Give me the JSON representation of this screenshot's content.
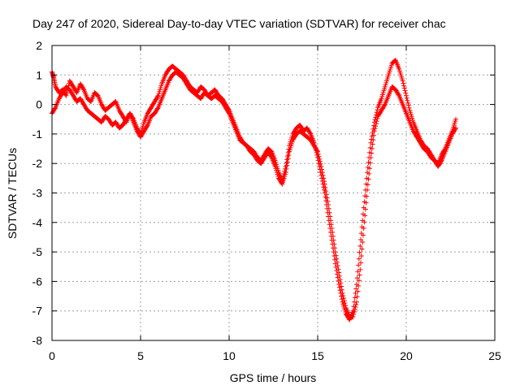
{
  "chart_data": {
    "type": "scatter",
    "title": "Day 247 of 2020, Sidereal Day-to-day VTEC variation (SDTVAR) for receiver chac",
    "xlabel": "GPS time / hours",
    "ylabel": "SDTVAR / TECUs",
    "xlim": [
      0,
      25
    ],
    "ylim": [
      -8,
      2
    ],
    "xticks": [
      "0",
      "5",
      "10",
      "15",
      "20",
      "25"
    ],
    "yticks": [
      "2",
      "1",
      "0",
      "-1",
      "-2",
      "-3",
      "-4",
      "-5",
      "-6",
      "-7",
      "-8"
    ],
    "grid": true,
    "marker": "+",
    "color": "#ff0000",
    "series": [
      {
        "x": [
          0.0,
          0.1,
          0.2,
          0.4,
          0.6,
          0.8,
          1.0,
          1.2,
          1.4,
          1.6,
          1.8,
          2.0,
          2.2,
          2.4,
          2.6,
          2.8,
          3.0,
          3.2,
          3.4,
          3.6,
          3.8,
          4.0,
          4.2,
          4.4,
          4.6,
          4.8,
          5.0,
          5.2,
          5.4,
          5.6,
          5.8,
          6.0,
          6.2,
          6.4,
          6.6,
          6.8,
          7.0,
          7.2,
          7.4,
          7.6,
          7.8,
          8.0,
          8.2,
          8.4,
          8.6,
          8.8,
          9.0,
          9.2,
          9.4,
          9.6,
          9.8,
          10.0,
          10.2,
          10.4,
          10.6,
          10.8,
          11.0,
          11.2,
          11.4,
          11.6,
          11.8,
          12.0,
          12.2,
          12.4,
          12.6,
          12.8,
          13.0,
          13.2,
          13.4,
          13.6,
          13.8,
          14.0,
          14.2,
          14.4,
          14.6,
          14.8,
          15.0,
          15.2,
          15.4,
          15.6,
          15.8,
          16.0,
          16.2,
          16.4,
          16.6,
          16.8,
          17.0,
          17.2,
          17.4,
          17.6,
          17.8,
          18.0,
          18.2,
          18.4,
          18.6,
          18.8,
          19.0,
          19.2,
          19.4,
          19.6,
          19.8,
          20.0,
          20.2,
          20.4,
          20.6,
          20.8,
          21.0,
          21.2,
          21.4,
          21.6,
          21.8,
          22.0,
          22.2,
          22.4,
          22.6,
          22.8
        ],
        "y": [
          1.1,
          0.9,
          0.6,
          0.4,
          0.5,
          0.3,
          0.8,
          0.6,
          0.4,
          0.7,
          0.5,
          0.2,
          0.1,
          0.4,
          0.3,
          0.0,
          -0.2,
          -0.1,
          0.0,
          0.1,
          -0.2,
          -0.4,
          -0.6,
          -0.3,
          -0.5,
          -0.8,
          -1.0,
          -0.6,
          -0.3,
          -0.1,
          0.1,
          0.3,
          0.7,
          1.0,
          1.2,
          1.3,
          1.2,
          1.1,
          1.0,
          0.8,
          0.6,
          0.5,
          0.4,
          0.6,
          0.5,
          0.3,
          0.4,
          0.5,
          0.3,
          0.2,
          0.0,
          -0.2,
          -0.5,
          -0.8,
          -1.1,
          -1.3,
          -1.4,
          -1.5,
          -1.6,
          -1.8,
          -1.9,
          -1.7,
          -1.5,
          -1.6,
          -1.9,
          -2.3,
          -2.6,
          -2.1,
          -1.4,
          -1.0,
          -0.8,
          -0.7,
          -0.9,
          -0.8,
          -1.0,
          -1.3,
          -1.8,
          -2.4,
          -3.0,
          -3.8,
          -4.6,
          -5.4,
          -6.1,
          -6.7,
          -7.1,
          -7.3,
          -7.0,
          -6.1,
          -4.8,
          -3.5,
          -2.3,
          -1.3,
          -0.6,
          -0.1,
          0.2,
          0.6,
          1.0,
          1.4,
          1.5,
          1.2,
          0.8,
          0.3,
          -0.2,
          -0.6,
          -0.9,
          -1.2,
          -1.4,
          -1.5,
          -1.7,
          -1.9,
          -2.0,
          -1.7,
          -1.5,
          -1.2,
          -0.9,
          -0.5
        ]
      },
      {
        "x": [
          0.0,
          0.2,
          0.4,
          0.6,
          0.8,
          1.0,
          1.2,
          1.4,
          1.6,
          1.8,
          2.0,
          2.2,
          2.4,
          2.6,
          2.8,
          3.0,
          3.2,
          3.4,
          3.6,
          3.8,
          4.0,
          4.2,
          4.4,
          4.6,
          4.8,
          5.0,
          5.2,
          5.4,
          5.6,
          5.8,
          6.0,
          6.2,
          6.4,
          6.6,
          6.8,
          7.0,
          7.2,
          7.4,
          7.6,
          7.8,
          8.0,
          8.2,
          8.4,
          8.6,
          8.8,
          9.0,
          9.2,
          9.4,
          9.6,
          9.8,
          10.0,
          10.2,
          10.4,
          10.6,
          10.8,
          11.0,
          11.2,
          11.4,
          11.6,
          11.8,
          12.0,
          12.2,
          12.4,
          12.6,
          12.8,
          13.0,
          13.2,
          13.4,
          13.6,
          13.8,
          14.0,
          14.2,
          14.4,
          14.6,
          14.8,
          15.0,
          15.2,
          15.4,
          15.6,
          15.8,
          16.0,
          16.2,
          16.4,
          16.6,
          16.8,
          17.0,
          17.2,
          17.4,
          17.6,
          17.8,
          18.0,
          18.2,
          18.4,
          18.6,
          18.8,
          19.0,
          19.2,
          19.4,
          19.6,
          19.8,
          20.0,
          20.2,
          20.4,
          20.6,
          20.8,
          21.0,
          21.2,
          21.4,
          21.6,
          21.8,
          22.0,
          22.2,
          22.4,
          22.6,
          22.8
        ],
        "y": [
          -0.3,
          -0.1,
          0.2,
          0.4,
          0.6,
          0.5,
          0.3,
          0.1,
          0.2,
          0.0,
          -0.2,
          -0.3,
          -0.4,
          -0.5,
          -0.6,
          -0.4,
          -0.5,
          -0.7,
          -0.6,
          -0.8,
          -0.7,
          -0.5,
          -0.3,
          -0.6,
          -0.9,
          -1.1,
          -0.9,
          -0.7,
          -0.4,
          -0.3,
          -0.1,
          0.2,
          0.5,
          0.8,
          1.0,
          1.1,
          1.0,
          0.9,
          0.7,
          0.5,
          0.4,
          0.3,
          0.2,
          0.4,
          0.3,
          0.2,
          0.3,
          0.2,
          0.1,
          -0.1,
          -0.3,
          -0.6,
          -0.9,
          -1.2,
          -1.3,
          -1.4,
          -1.6,
          -1.7,
          -1.9,
          -2.0,
          -1.8,
          -1.6,
          -1.8,
          -2.1,
          -2.5,
          -2.7,
          -2.3,
          -1.6,
          -1.2,
          -1.0,
          -0.9,
          -1.0,
          -1.1,
          -1.2,
          -1.4,
          -1.6,
          -2.1,
          -2.7,
          -3.4,
          -4.2,
          -5.0,
          -5.7,
          -6.4,
          -6.9,
          -7.2,
          -7.2,
          -6.7,
          -5.6,
          -4.2,
          -2.9,
          -1.8,
          -0.9,
          -0.4,
          -0.2,
          0.0,
          0.3,
          0.6,
          0.5,
          0.3,
          0.0,
          -0.3,
          -0.6,
          -0.9,
          -1.1,
          -1.3,
          -1.5,
          -1.6,
          -1.8,
          -1.9,
          -2.1,
          -1.9,
          -1.6,
          -1.3,
          -1.0,
          -0.8
        ]
      }
    ]
  }
}
